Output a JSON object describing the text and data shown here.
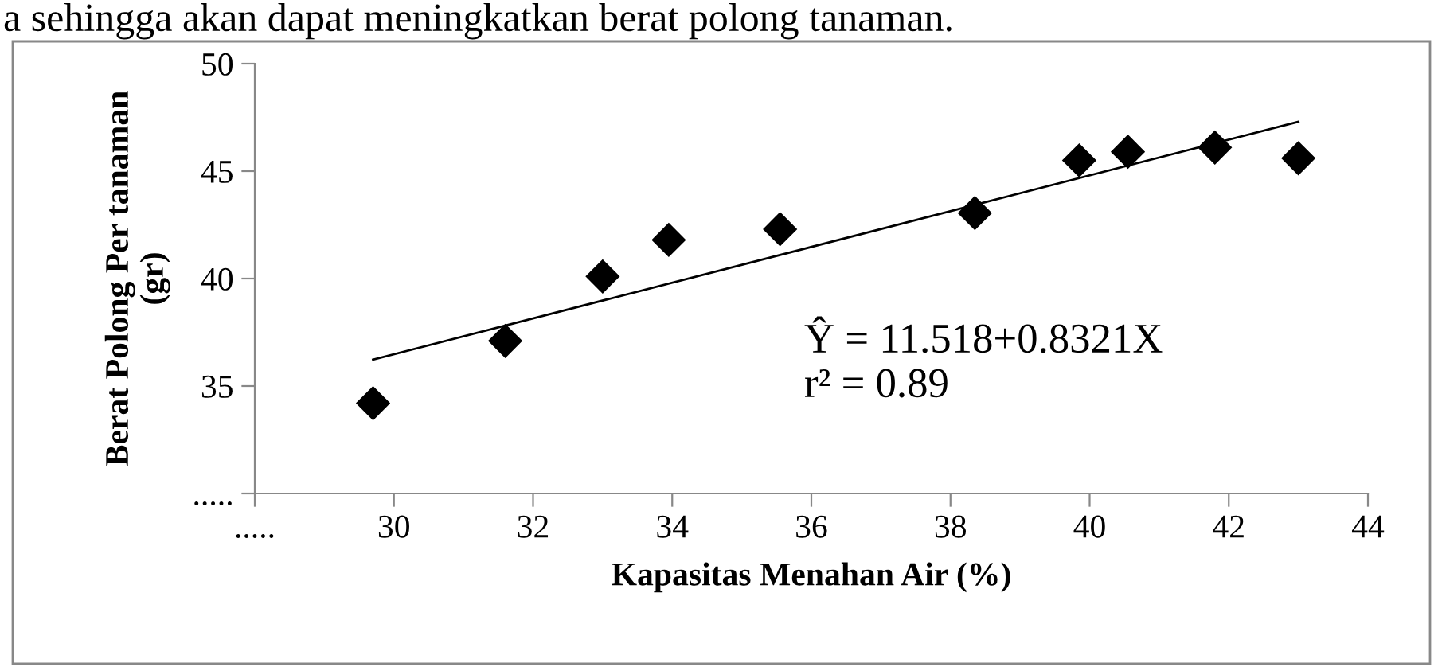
{
  "chart_data": {
    "type": "scatter",
    "xlabel": "Kapasitas Menahan Air (%)",
    "ylabel": "Berat Polong Per tanaman\n(gr)",
    "annotations": [
      "a sehingga akan dapat meningkatkan berat polong tanaman.",
      "Ŷ = 11.518+0.8321X",
      "r² = 0.89"
    ],
    "marker": "diamond",
    "grid": false,
    "legend": false,
    "xlim": [
      28,
      44
    ],
    "xticks": [
      {
        "value": 28,
        "label": "....."
      },
      30,
      32,
      34,
      36,
      38,
      40,
      42,
      44
    ],
    "ylim": [
      30,
      50
    ],
    "yticks": [
      {
        "value": 30,
        "label": "....."
      },
      35,
      40,
      45,
      50
    ],
    "series": [
      {
        "color": "#000000",
        "x": [
          29.7,
          31.6,
          33.0,
          33.95,
          35.55,
          38.35,
          39.85,
          40.55,
          41.8,
          43.0
        ],
        "values": [
          34.2,
          37.1,
          40.1,
          41.8,
          42.3,
          43.05,
          45.5,
          45.9,
          46.1,
          45.6
        ]
      },
      {
        "type": "line",
        "color": "#000000",
        "marker": "none",
        "line_style": "solid",
        "x": [
          29.7,
          43.0
        ],
        "values": [
          36.23,
          47.3
        ]
      }
    ]
  }
}
